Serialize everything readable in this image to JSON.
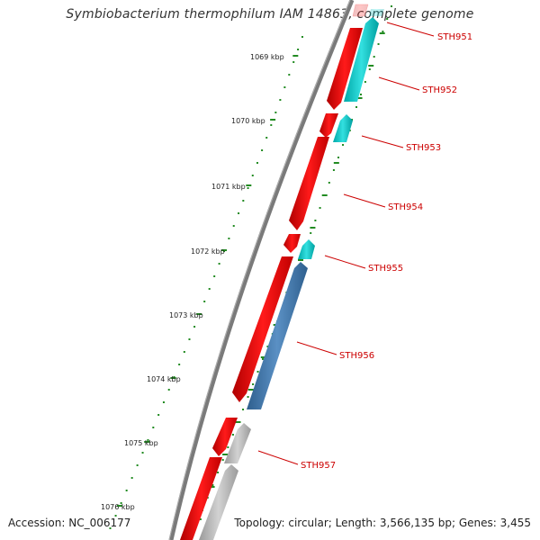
{
  "header": {
    "title": "Symbiobacterium thermophilum IAM 14863, complete genome"
  },
  "footer": {
    "accession": "Accession: NC_006177",
    "summary": "Topology: circular; Length: 3,566,135 bp; Genes: 3,455"
  },
  "map": {
    "ruler_labels": [
      "1069 kbp",
      "1070 kbp",
      "1071 kbp",
      "1072 kbp",
      "1073 kbp",
      "1074 kbp",
      "1075 kbp",
      "1076 kbp"
    ],
    "gene_labels": [
      "STH951",
      "STH952",
      "STH953",
      "STH954",
      "STH955",
      "STH956",
      "STH957"
    ],
    "colors": {
      "backbone": "#808080",
      "forward_gene": "#ff0000",
      "reverse_teal": "#00cccc",
      "reverse_blue": "#4682b4",
      "reverse_grey": "#b4b4b4",
      "ticks": "#228b22",
      "label": "#cc0000"
    }
  }
}
